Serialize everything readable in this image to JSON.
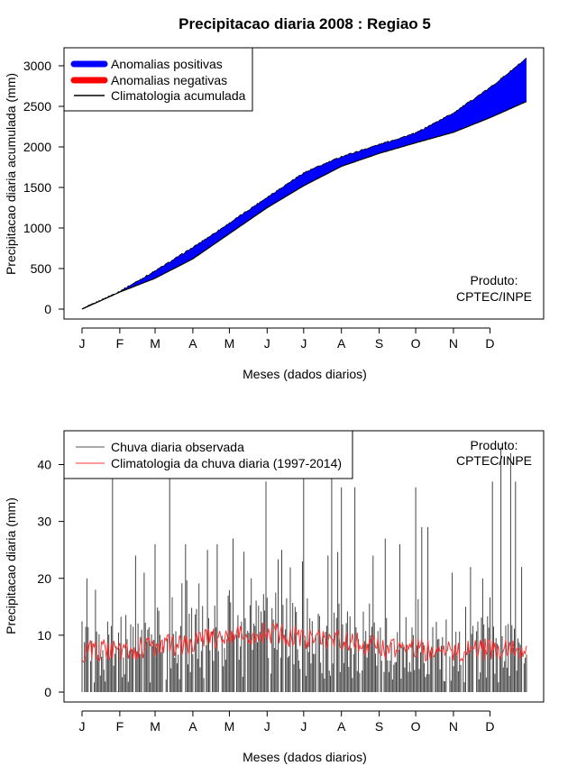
{
  "chart_data": [
    {
      "type": "area",
      "title": "Precipitacao diaria 2008 : Regiao 5",
      "xlabel": "Meses (dados diarios)",
      "ylabel": "Precipitacao diaria acumulada (mm)",
      "month_ticks": [
        "J",
        "F",
        "M",
        "A",
        "M",
        "J",
        "J",
        "A",
        "S",
        "O",
        "N",
        "D"
      ],
      "month_start_days": [
        1,
        32,
        61,
        92,
        122,
        153,
        183,
        214,
        245,
        275,
        306,
        336
      ],
      "xlim": [
        1,
        366
      ],
      "ylim": [
        0,
        3000
      ],
      "yticks": [
        0,
        500,
        1000,
        1500,
        2000,
        2500,
        3000
      ],
      "legend": {
        "position": "top-left",
        "entries": [
          {
            "label": "Anomalias positivas",
            "color": "#0000ff",
            "style": "thick"
          },
          {
            "label": "Anomalias negativas",
            "color": "#ff0000",
            "style": "thick"
          },
          {
            "label": "Climatologia acumulada",
            "color": "#000000",
            "style": "line"
          }
        ]
      },
      "annotation": [
        "Produto:",
        "CPTEC/INPE"
      ],
      "series": [
        {
          "name": "Climatologia acumulada",
          "x": [
            1,
            32,
            61,
            92,
            122,
            153,
            183,
            214,
            245,
            275,
            306,
            336,
            366
          ],
          "values": [
            0,
            210,
            380,
            620,
            930,
            1250,
            1520,
            1760,
            1920,
            2050,
            2180,
            2360,
            2560
          ]
        },
        {
          "name": "Precipitacao observada acumulada",
          "x": [
            1,
            32,
            61,
            92,
            122,
            153,
            183,
            214,
            245,
            275,
            306,
            336,
            366
          ],
          "values": [
            0,
            220,
            470,
            760,
            1060,
            1380,
            1680,
            1880,
            2030,
            2170,
            2420,
            2730,
            3090
          ]
        }
      ]
    },
    {
      "type": "line",
      "xlabel": "Meses (dados diarios)",
      "ylabel": "Precipitacao diaria (mm)",
      "month_ticks": [
        "J",
        "F",
        "M",
        "A",
        "M",
        "J",
        "J",
        "A",
        "S",
        "O",
        "N",
        "D"
      ],
      "month_start_days": [
        1,
        32,
        61,
        92,
        122,
        153,
        183,
        214,
        245,
        275,
        306,
        336
      ],
      "xlim": [
        1,
        366
      ],
      "ylim": [
        0,
        40
      ],
      "yticks": [
        0,
        10,
        20,
        30,
        40
      ],
      "legend": {
        "position": "top-left",
        "entries": [
          {
            "label": "Chuva diaria observada",
            "color": "#555555"
          },
          {
            "label": "Climatologia da chuva diaria (1997-2014)",
            "color": "#ff3030"
          }
        ]
      },
      "annotation": [
        "Produto:",
        "CPTEC/INPE"
      ],
      "series": [
        {
          "name": "Chuva diaria observada",
          "x": [
            5,
            12,
            26,
            45,
            52,
            61,
            73,
            86,
            104,
            112,
            125,
            140,
            152,
            165,
            183,
            203,
            206,
            214,
            225,
            240,
            250,
            262,
            275,
            280,
            285,
            305,
            320,
            330,
            338,
            345,
            353,
            357,
            362
          ],
          "values": [
            20,
            18,
            38,
            24,
            21,
            26,
            40,
            26,
            25,
            26,
            27,
            20,
            37,
            25,
            39,
            24,
            38,
            36,
            36,
            24,
            27,
            26,
            36,
            29,
            29,
            21,
            22,
            20,
            37,
            43,
            42,
            37,
            22
          ]
        },
        {
          "name": "Climatologia da chuva diaria (1997-2014)",
          "x": [
            1,
            31,
            61,
            91,
            121,
            152,
            182,
            213,
            243,
            274,
            304,
            335,
            366
          ],
          "values": [
            7,
            7.5,
            8,
            8.5,
            10,
            10.5,
            9.5,
            9,
            8,
            7.5,
            7,
            7.5,
            7
          ]
        }
      ]
    }
  ]
}
